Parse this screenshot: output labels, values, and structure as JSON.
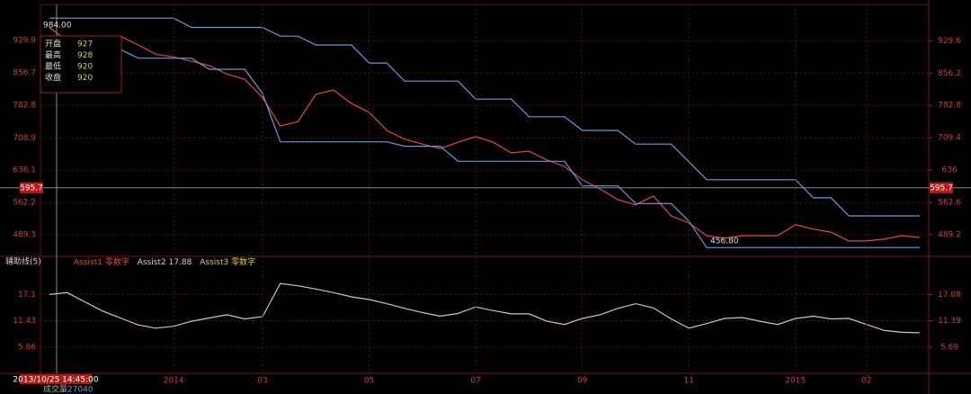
{
  "chart_data": [
    {
      "type": "line",
      "categories": [
        null,
        null,
        null,
        null,
        null,
        null,
        null,
        "2014",
        null,
        null,
        null,
        null,
        "03",
        null,
        null,
        null,
        null,
        null,
        "05",
        null,
        null,
        null,
        null,
        null,
        "07",
        null,
        null,
        null,
        null,
        null,
        "09",
        null,
        null,
        null,
        null,
        null,
        "11",
        null,
        null,
        null,
        null,
        null,
        "2015",
        null,
        null,
        null,
        "02",
        null,
        null,
        null
      ],
      "series": [
        {
          "color": "#e04848",
          "values": [
            960,
            930,
            930,
            934,
            940,
            920,
            899,
            893,
            883,
            873,
            854,
            842,
            801,
            736,
            746,
            808,
            818,
            787,
            767,
            726,
            706,
            695,
            685,
            699,
            712,
            699,
            675,
            679,
            659,
            644,
            614,
            593,
            569,
            557,
            577,
            532,
            516,
            487,
            481,
            487,
            487,
            487,
            512,
            502,
            495,
            475,
            475,
            479,
            487,
            483
          ]
        },
        {
          "color": "#6a9ae0",
          "values": [
            981,
            981,
            981,
            981,
            981,
            981,
            981,
            981,
            960,
            960,
            960,
            960,
            960,
            940,
            940,
            920,
            920,
            920,
            879,
            879,
            838,
            838,
            838,
            838,
            797,
            797,
            797,
            757,
            757,
            757,
            726,
            726,
            726,
            695,
            695,
            695,
            655,
            614,
            614,
            614,
            614,
            614,
            614,
            573,
            573,
            532,
            532,
            532,
            532,
            532
          ]
        },
        {
          "color": "#6a9ae0",
          "values": [
            910,
            910,
            910,
            910,
            910,
            890,
            890,
            890,
            890,
            865,
            865,
            865,
            810,
            700,
            700,
            700,
            700,
            700,
            700,
            700,
            690,
            690,
            690,
            656,
            656,
            656,
            656,
            656,
            656,
            656,
            600,
            600,
            600,
            560,
            560,
            560,
            520,
            460,
            460,
            460,
            460,
            460,
            460,
            460,
            460,
            460,
            460,
            460,
            460,
            460
          ]
        }
      ],
      "ylim": [
        440,
        1012
      ],
      "yticks": [
        489.3,
        562.2,
        636.1,
        708.9,
        782.8,
        856.7,
        929.9
      ],
      "y2lim": [
        440,
        1012
      ],
      "y2ticks": [
        489.2,
        562.6,
        636.0,
        709.4,
        782.8,
        856.2,
        929.6
      ],
      "last_price": 595.7,
      "high_label": "984.00",
      "low_label": "456.80",
      "info_box": [
        {
          "label": "开盘",
          "value": 927
        },
        {
          "label": "最高",
          "value": 928
        },
        {
          "label": "最低",
          "value": 920
        },
        {
          "label": "收盘",
          "value": 920
        }
      ],
      "grid": true
    },
    {
      "type": "line",
      "title": "辅助线(5)",
      "legend": [
        {
          "name": "Assist1",
          "value": "零数字",
          "color": "#e04848"
        },
        {
          "name": "Assist2",
          "value": 17.88,
          "color": "#d0d0d0"
        },
        {
          "name": "Assist3",
          "value": "零数字",
          "color": "#d8d040"
        }
      ],
      "series": [
        {
          "color": "#c8c8c8",
          "values": [
            17.1,
            17.5,
            15.5,
            13.5,
            12,
            10.5,
            9.8,
            10.2,
            11.3,
            12,
            12.7,
            11.8,
            12.3,
            19.5,
            19,
            18.3,
            17.5,
            16.6,
            16,
            15.1,
            14.1,
            13.2,
            12.4,
            13,
            14.4,
            13.6,
            12.9,
            12.9,
            11.3,
            10.6,
            11.9,
            12.7,
            14.1,
            15.1,
            14.2,
            11.8,
            9.8,
            10.8,
            11.9,
            12.1,
            11.3,
            10.6,
            11.9,
            12.4,
            11.8,
            11.9,
            10.6,
            9.3,
            8.9,
            8.8
          ]
        }
      ],
      "ylim": [
        0,
        24.4
      ],
      "yticks": [
        5.66,
        11.43,
        17.1
      ],
      "y2lim": [
        0,
        24.4
      ],
      "y2ticks": [
        5.69,
        11.39,
        17.08
      ],
      "grid": true
    }
  ],
  "cursor_date": "2013/10/25 14:45:00",
  "volume_label": "成交量",
  "volume_value": 27040
}
